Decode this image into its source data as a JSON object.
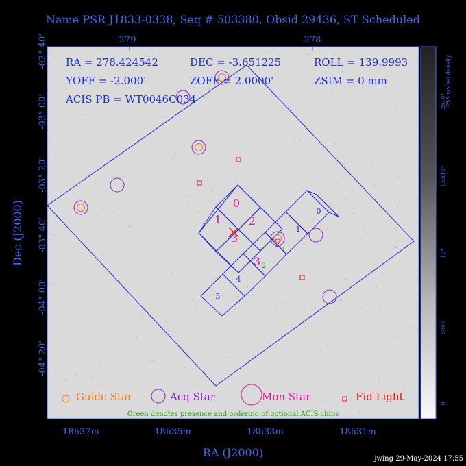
{
  "title": "Name PSR J1833-0338, Seq # 503380, Obsid 29436, ST Scheduled",
  "top_axis": {
    "ticks": [
      "279",
      "278"
    ]
  },
  "left_axis": {
    "label": "Dec (J2000)",
    "ticks": [
      "-02° 40'",
      "-03° 00'",
      "-03° 20'",
      "-03° 40'",
      "-04° 00'",
      "-04° 20'"
    ]
  },
  "bottom_axis": {
    "label": "RA (J2000)",
    "ticks": [
      "18h37m",
      "18h35m",
      "18h33m",
      "18h31m"
    ]
  },
  "colorbar": {
    "label": "PSS scaled density",
    "ticks": [
      "2x10⁴",
      "1.5x10⁴",
      "10⁴",
      "5000",
      "0"
    ]
  },
  "info": {
    "ra": "RA = 278.424542",
    "dec": "DEC = -3.651225",
    "roll": "ROLL = 139.9993",
    "yoff": "YOFF = -2.000'",
    "zoff": "ZOFF = 2.0000'",
    "zsim": "ZSIM = 0 mm",
    "acis_pb": "ACIS PB = WT0046C034"
  },
  "chips": {
    "i_labels": [
      "0",
      "1",
      "2",
      "3"
    ],
    "s_labels": [
      "0",
      "1",
      "2",
      "3",
      "4",
      "5"
    ],
    "optional_labels": [
      "1",
      "2"
    ]
  },
  "legend": {
    "guide": "Guide Star",
    "acq": "Acq Star",
    "mon": "Mon Star",
    "fid": "Fid Light",
    "note": "Green denotes presence and ordering of optional ACIS chips"
  },
  "footer": "jwing 29-May-2024 17:55",
  "colors": {
    "background": "#000000",
    "field": "#dadada",
    "axis": "#3b6cf6",
    "text_blue": "#1c2bd6",
    "chip_s_label": "#1c2bd6",
    "magenta": "#e0179e",
    "orange": "#f07818",
    "purple": "#8a22c8",
    "red": "#e01818",
    "green": "#2a9a0a",
    "footer": "#ffffff"
  }
}
